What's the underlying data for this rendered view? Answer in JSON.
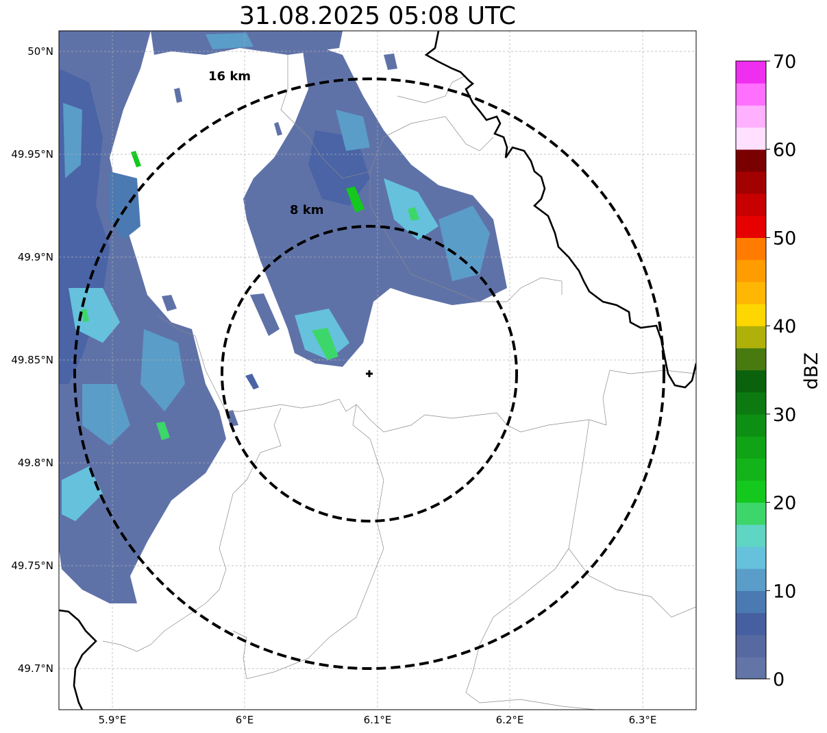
{
  "title": "31.08.2025 05:08 UTC",
  "map": {
    "lon_range": [
      5.86,
      6.34
    ],
    "lat_range": [
      49.68,
      50.01
    ],
    "lon_ticks": [
      {
        "value": 5.9,
        "label": "5.9°E"
      },
      {
        "value": 6.0,
        "label": "6°E"
      },
      {
        "value": 6.1,
        "label": "6.1°E"
      },
      {
        "value": 6.2,
        "label": "6.2°E"
      },
      {
        "value": 6.3,
        "label": "6.3°E"
      }
    ],
    "lat_ticks": [
      {
        "value": 50.0,
        "label": "50°N"
      },
      {
        "value": 49.95,
        "label": "49.95°N"
      },
      {
        "value": 49.9,
        "label": "49.9°N"
      },
      {
        "value": 49.85,
        "label": "49.85°N"
      },
      {
        "value": 49.8,
        "label": "49.8°N"
      },
      {
        "value": 49.75,
        "label": "49.75°N"
      },
      {
        "value": 49.7,
        "label": "49.7°N"
      }
    ],
    "radar_site": {
      "lon": 6.094,
      "lat": 49.843
    },
    "range_rings": [
      {
        "radius_km": 8,
        "label": "8 km"
      },
      {
        "radius_km": 16,
        "label": "16 km"
      }
    ]
  },
  "colorbar": {
    "label": "dBZ",
    "min": 0,
    "max": 70,
    "tick_labels": [
      "0",
      "10",
      "20",
      "30",
      "40",
      "50",
      "60",
      "70"
    ],
    "colors": [
      "#6374a6",
      "#5669a0",
      "#465fa0",
      "#4b7ab2",
      "#5a9dc8",
      "#66c1dc",
      "#5fd5c3",
      "#3dd66a",
      "#14c81e",
      "#12b41a",
      "#0fa315",
      "#0d8f13",
      "#0c7a10",
      "#0a620d",
      "#487a10",
      "#b0b00a",
      "#ffd700",
      "#ffb703",
      "#ff9c00",
      "#ff7c00",
      "#e60000",
      "#c80000",
      "#a30000",
      "#7a0000",
      "#ffe0ff",
      "#ffb0ff",
      "#ff70ff",
      "#f02ef0"
    ]
  }
}
